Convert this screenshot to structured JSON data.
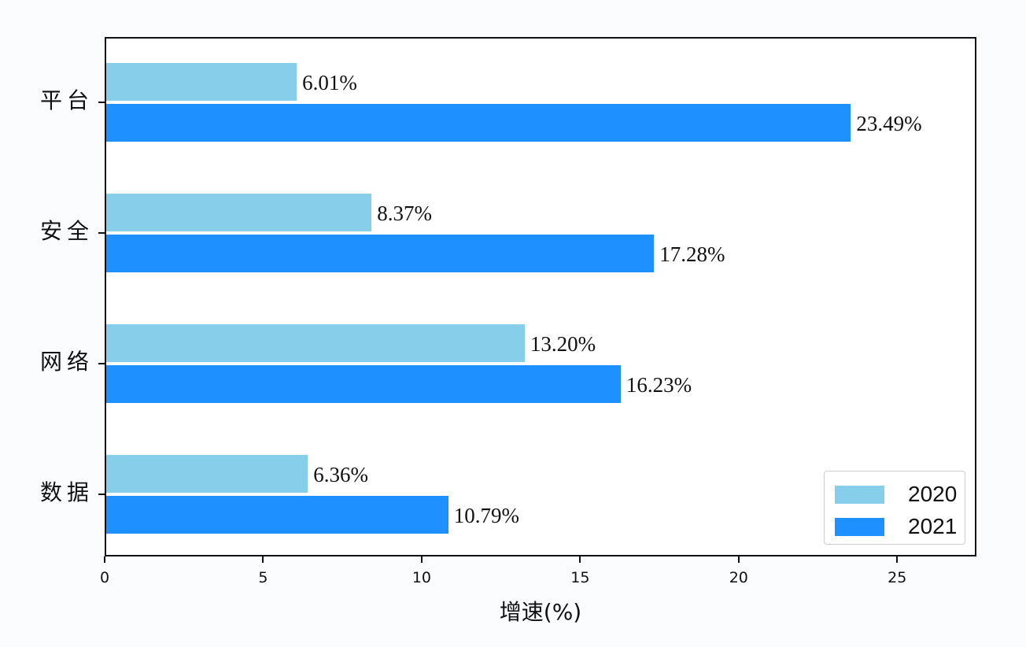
{
  "chart_data": {
    "type": "bar",
    "orientation": "horizontal",
    "title": "",
    "xlabel": "增速(%)",
    "ylabel": "",
    "categories": [
      "平台",
      "安全",
      "网络",
      "数据"
    ],
    "series": [
      {
        "name": "2020",
        "color": "#87ceeb",
        "values": [
          6.01,
          8.37,
          13.2,
          6.36
        ],
        "labels": [
          "6.01%",
          "8.37%",
          "13.20%",
          "6.36%"
        ]
      },
      {
        "name": "2021",
        "color": "#1e90ff",
        "values": [
          23.49,
          17.28,
          16.23,
          10.79
        ],
        "labels": [
          "23.49%",
          "17.28%",
          "16.23%",
          "10.79%"
        ]
      }
    ],
    "xlim": [
      0,
      27.5
    ],
    "xticks": [
      0,
      5,
      10,
      15,
      20,
      25
    ],
    "xtick_labels": [
      "0",
      "5",
      "10",
      "15",
      "20",
      "25"
    ],
    "grid": false,
    "legend_position": "lower right"
  }
}
